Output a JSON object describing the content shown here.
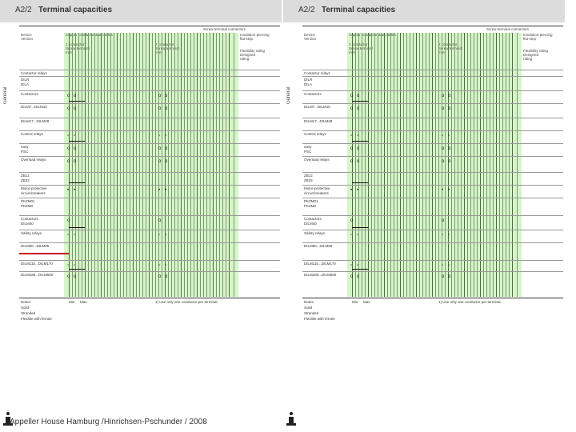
{
  "page_number": "A2/2",
  "page_title": "Terminal capacities",
  "side_tab": "General",
  "columns": {
    "device": "Device\nVersion",
    "main_header": "Copper conductor and cables",
    "second_header": "Screw terminal connectors",
    "right_header": "Insulation-piercing\nflat-strip",
    "solid": "1 conductor\nScrew terminal\nmm²",
    "stranded": "2 conductor\nScrew terminal\nmm²",
    "flexible": "Flexibility rating\nDesigned\nrating"
  },
  "rows": [
    {
      "label": "Contactor relays"
    },
    {
      "label": "DILR\nDILA"
    },
    {
      "label": "Contactors"
    },
    {
      "label": "DILM7...DILM15"
    },
    {
      "label": "DILM17...DILM38"
    },
    {
      "label": "Control relays"
    },
    {
      "label": "easy\nPSC"
    },
    {
      "label": "Overload relays"
    },
    {
      "label": "ZB12\nZB32"
    },
    {
      "label": "Motor-protective\ncircuit-breakers"
    },
    {
      "label": "PKZM01\nPKZM0"
    },
    {
      "label": "Contactors\nDILM40"
    },
    {
      "label": "Safety relays"
    },
    {
      "label": "DILM50...DILM95"
    },
    {
      "label": "DILM115...DILM170"
    },
    {
      "label": "DILM185...DILM500"
    }
  ],
  "legend": {
    "notes": "Notes:",
    "solid": "Solid",
    "stranded": "Stranded",
    "flexible": "Flexible with ferrule",
    "min": "Min.",
    "max": "Max.",
    "footnote": "1) Use only one conductor per terminal."
  },
  "footer": "Appeller House Hamburg /Hinrichsen-Pschunder / 2008",
  "colors": {
    "green": "#d6f5c8",
    "header_bar": "#dcdcdc",
    "red_mark": "#cc0000"
  },
  "icons": [
    "info-icon"
  ]
}
